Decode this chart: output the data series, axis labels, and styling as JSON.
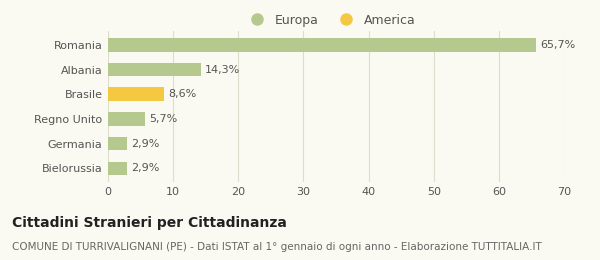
{
  "categories": [
    "Romania",
    "Albania",
    "Brasile",
    "Regno Unito",
    "Germania",
    "Bielorussia"
  ],
  "values": [
    65.7,
    14.3,
    8.6,
    5.7,
    2.9,
    2.9
  ],
  "labels": [
    "65,7%",
    "14,3%",
    "8,6%",
    "5,7%",
    "2,9%",
    "2,9%"
  ],
  "colors": [
    "#b5c98e",
    "#b5c98e",
    "#f5c842",
    "#b5c98e",
    "#b5c98e",
    "#b5c98e"
  ],
  "legend": [
    {
      "label": "Europa",
      "color": "#b5c98e"
    },
    {
      "label": "America",
      "color": "#f5c842"
    }
  ],
  "xlim": [
    0,
    70
  ],
  "xticks": [
    0,
    10,
    20,
    30,
    40,
    50,
    60,
    70
  ],
  "title": "Cittadini Stranieri per Cittadinanza",
  "subtitle": "COMUNE DI TURRIVALIGNANI (PE) - Dati ISTAT al 1° gennaio di ogni anno - Elaborazione TUTTITALIA.IT",
  "bg_color": "#fafaf2",
  "grid_color": "#ddddcc",
  "bar_height": 0.55,
  "title_fontsize": 10,
  "subtitle_fontsize": 7.5,
  "label_fontsize": 8,
  "tick_fontsize": 8
}
